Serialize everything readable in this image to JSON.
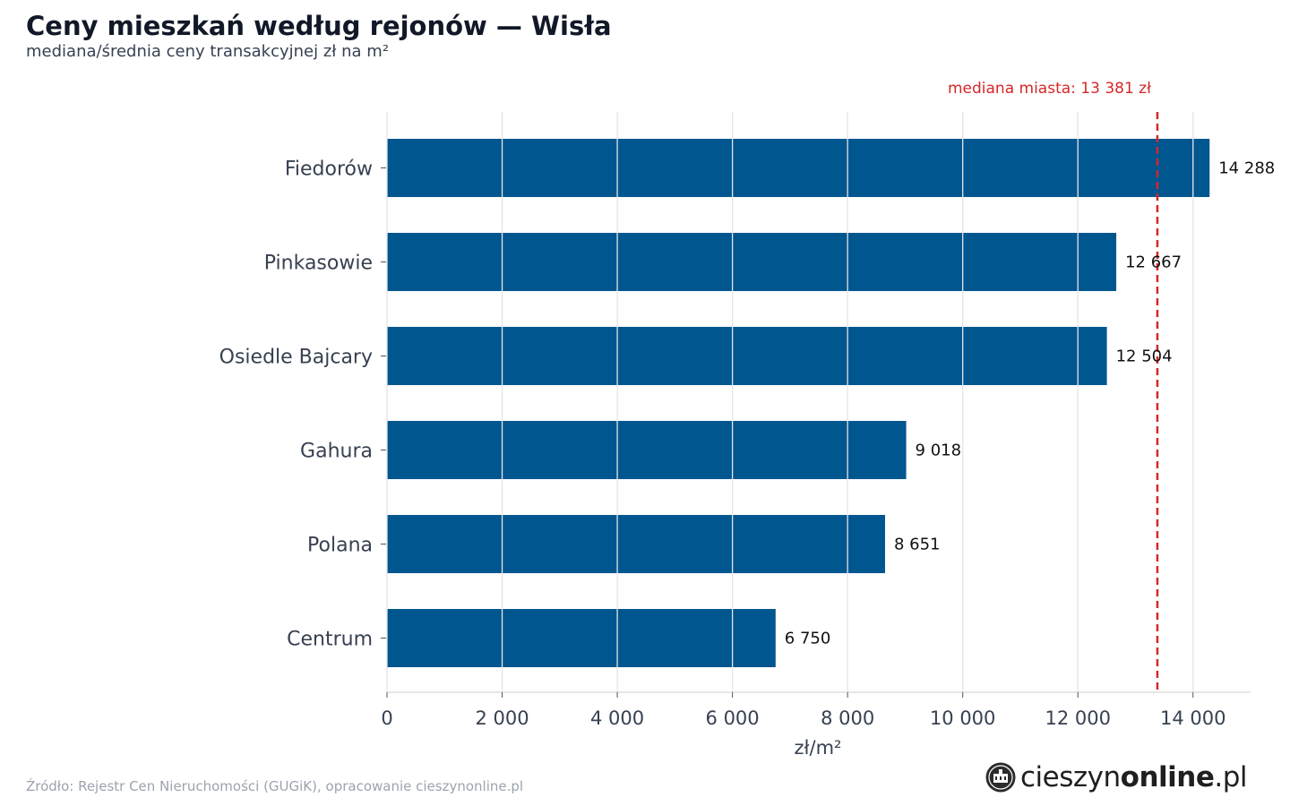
{
  "header": {
    "title": "Ceny mieszkań według rejonów — Wisła",
    "subtitle": "mediana/średnia ceny transakcyjnej zł na m²"
  },
  "chart_data": {
    "type": "bar",
    "orientation": "horizontal",
    "categories": [
      "Fiedorów",
      "Pinkasowie",
      "Osiedle Bajcary",
      "Gahura",
      "Polana",
      "Centrum"
    ],
    "values": [
      14288,
      12667,
      12504,
      9018,
      8651,
      6750
    ],
    "value_labels": [
      "14 288",
      "12 667",
      "12 504",
      "9 018",
      "8 651",
      "6 750"
    ],
    "xlabel": "zł/m²",
    "ylabel": "",
    "xlim": [
      0,
      15000
    ],
    "xticks": [
      0,
      2000,
      4000,
      6000,
      8000,
      10000,
      12000,
      14000
    ],
    "xtick_labels": [
      "0",
      "2 000",
      "4 000",
      "6 000",
      "8 000",
      "10 000",
      "12 000",
      "14 000"
    ],
    "grid": "vertical",
    "reference_line": {
      "value": 13381,
      "label": "mediana miasta: 13 381 zł",
      "style": "dashed"
    },
    "colors": {
      "bar": "#00568f",
      "reference": "#d62728",
      "grid": "#e5e5e5",
      "axis": "#cccccc",
      "tick_text": "#374151",
      "label_text": "#111111"
    }
  },
  "footer": {
    "source": "Źródło: Rejestr Cen Nieruchomości (GUGiK), opracowanie cieszynonline.pl",
    "logo_regular": "cieszyn",
    "logo_bold": "online",
    "logo_suffix": ".pl"
  }
}
